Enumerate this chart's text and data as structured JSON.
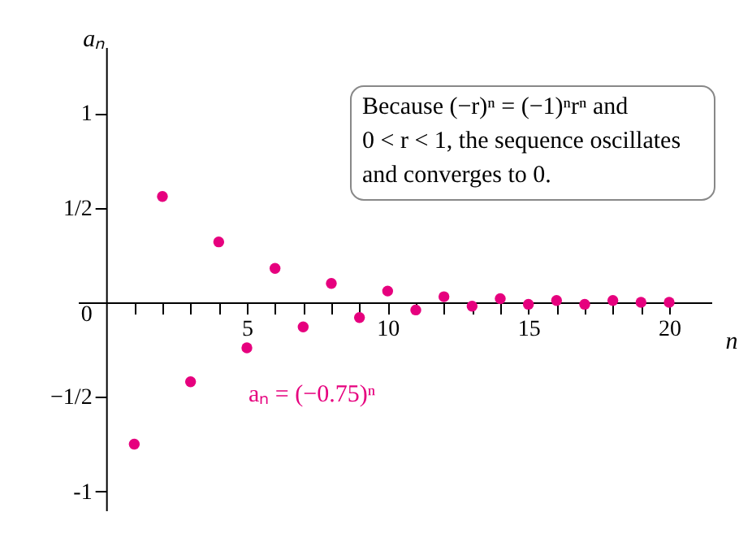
{
  "chart_data": {
    "type": "scatter",
    "xlabel": "n",
    "ylabel": "aₙ",
    "x": [
      1,
      2,
      3,
      4,
      5,
      6,
      7,
      8,
      9,
      10,
      11,
      12,
      13,
      14,
      15,
      16,
      17,
      18,
      19,
      20
    ],
    "values": [
      -0.75,
      0.56,
      -0.42,
      0.32,
      -0.24,
      0.18,
      -0.13,
      0.1,
      -0.08,
      0.06,
      -0.04,
      0.03,
      -0.02,
      0.02,
      -0.01,
      0.01,
      -0.01,
      0.01,
      0,
      0
    ],
    "color": "#e6007e",
    "marker": "circle",
    "grid": false,
    "xlim": [
      -1,
      21.5
    ],
    "ylim": [
      -1.1,
      1.35
    ],
    "xticks": [
      {
        "value": 1,
        "label": null
      },
      {
        "value": 2,
        "label": null
      },
      {
        "value": 3,
        "label": null
      },
      {
        "value": 4,
        "label": null
      },
      5,
      {
        "value": 6,
        "label": null
      },
      {
        "value": 7,
        "label": null
      },
      {
        "value": 8,
        "label": null
      },
      {
        "value": 9,
        "label": null
      },
      10,
      {
        "value": 11,
        "label": null
      },
      {
        "value": 12,
        "label": null
      },
      {
        "value": 13,
        "label": null
      },
      {
        "value": 14,
        "label": null
      },
      15,
      {
        "value": 16,
        "label": null
      },
      {
        "value": 17,
        "label": null
      },
      {
        "value": 18,
        "label": null
      },
      {
        "value": 19,
        "label": null
      },
      20
    ],
    "yticks": [
      -1,
      {
        "value": -0.5,
        "label": "−1/2"
      },
      0,
      {
        "value": 0.5,
        "label": "1/2"
      },
      1
    ],
    "annotations": [
      "Because (−r)ⁿ = (−1)ⁿrⁿ and\n0 < r < 1, the sequence oscillates\nand converges to 0.",
      "aₙ = (−0.75)ⁿ"
    ]
  }
}
